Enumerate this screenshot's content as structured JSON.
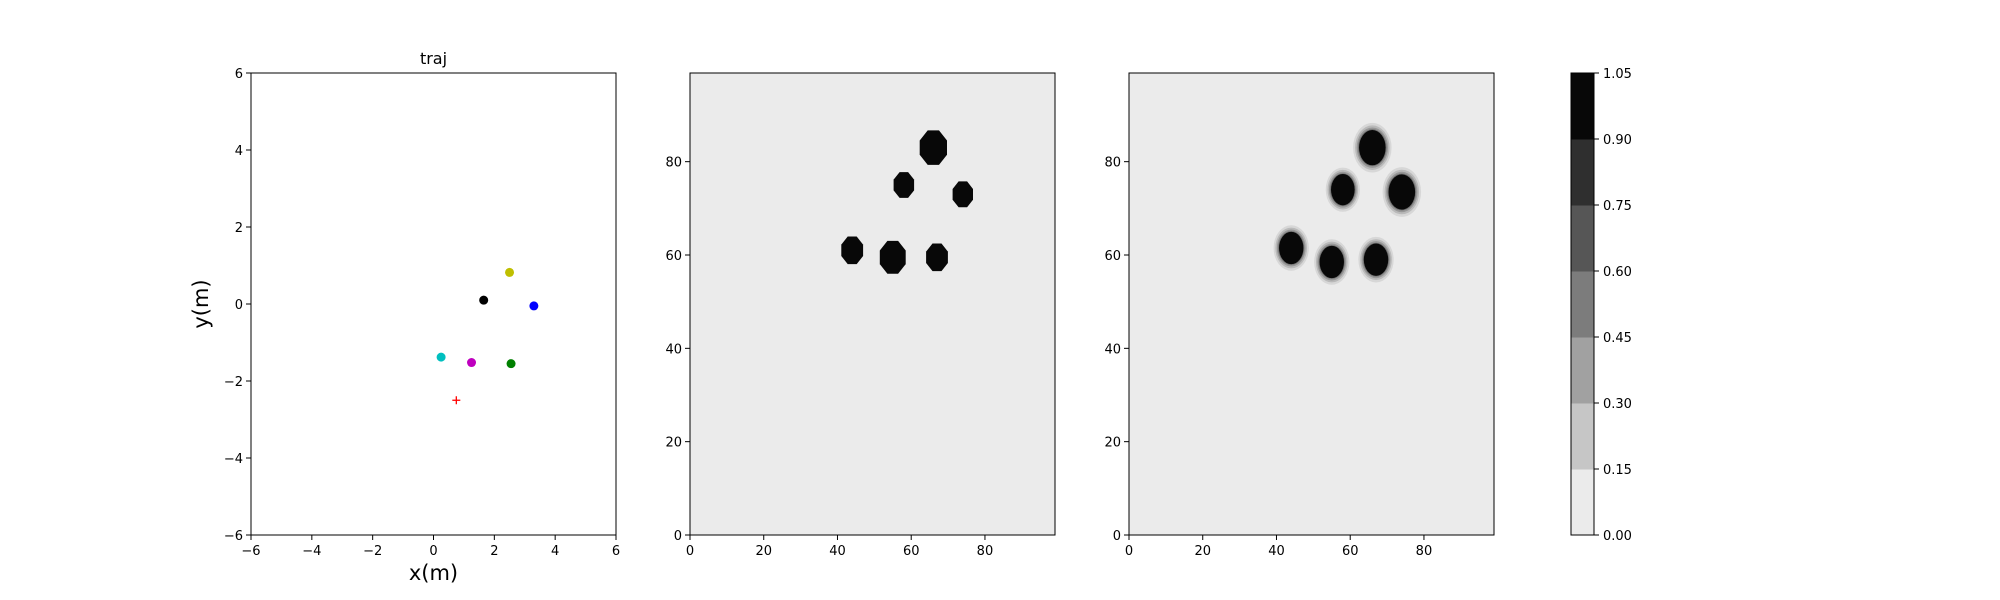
{
  "chart_data": [
    {
      "type": "scatter",
      "title": "traj",
      "xlabel": "x(m)",
      "ylabel": "y(m)",
      "xlim": [
        -6,
        6
      ],
      "ylim": [
        -6,
        6
      ],
      "xticks": [
        -6,
        -4,
        -2,
        0,
        2,
        4,
        6
      ],
      "yticks": [
        -6,
        -4,
        -2,
        0,
        2,
        4,
        6
      ],
      "grid": false,
      "points": [
        {
          "x": 2.5,
          "y": 0.82,
          "color": "#bfbf00",
          "marker": "circle"
        },
        {
          "x": 1.65,
          "y": 0.1,
          "color": "#000000",
          "marker": "circle"
        },
        {
          "x": 3.3,
          "y": -0.05,
          "color": "#0000ff",
          "marker": "circle"
        },
        {
          "x": 0.25,
          "y": -1.38,
          "color": "#00bfbf",
          "marker": "circle"
        },
        {
          "x": 1.25,
          "y": -1.52,
          "color": "#bf00bf",
          "marker": "circle"
        },
        {
          "x": 2.55,
          "y": -1.55,
          "color": "#008000",
          "marker": "circle"
        },
        {
          "x": 0.75,
          "y": -2.5,
          "color": "#ff0000",
          "marker": "plus"
        }
      ]
    },
    {
      "type": "heatmap",
      "xlim": [
        0,
        99
      ],
      "ylim": [
        0,
        99
      ],
      "xticks": [
        0,
        20,
        40,
        60,
        80
      ],
      "yticks": [
        0,
        20,
        40,
        60,
        80
      ],
      "background_value": 0.0,
      "blobs": [
        {
          "cx": 66,
          "cy": 83,
          "r": 4,
          "value": 1.05,
          "shape": "octagon"
        },
        {
          "cx": 58,
          "cy": 75,
          "r": 3,
          "value": 1.05,
          "shape": "octagon"
        },
        {
          "cx": 74,
          "cy": 73,
          "r": 3,
          "value": 1.05,
          "shape": "octagon"
        },
        {
          "cx": 44,
          "cy": 61,
          "r": 3.2,
          "value": 1.05,
          "shape": "octagon"
        },
        {
          "cx": 55,
          "cy": 59.5,
          "r": 3.8,
          "value": 1.05,
          "shape": "octagon"
        },
        {
          "cx": 67,
          "cy": 59.5,
          "r": 3.2,
          "value": 1.05,
          "shape": "octagon"
        }
      ]
    },
    {
      "type": "heatmap",
      "xlim": [
        0,
        99
      ],
      "ylim": [
        0,
        99
      ],
      "xticks": [
        0,
        20,
        40,
        60,
        80
      ],
      "yticks": [
        0,
        20,
        40,
        60,
        80
      ],
      "background_value": 0.0,
      "blobs": [
        {
          "cx": 66,
          "cy": 83,
          "r": 3.6,
          "value": 1.05,
          "shape": "soft"
        },
        {
          "cx": 58,
          "cy": 74,
          "r": 3.2,
          "value": 1.0,
          "shape": "soft"
        },
        {
          "cx": 74,
          "cy": 73.5,
          "r": 3.6,
          "value": 1.05,
          "shape": "soft"
        },
        {
          "cx": 44,
          "cy": 61.5,
          "r": 3.3,
          "value": 1.05,
          "shape": "soft"
        },
        {
          "cx": 55,
          "cy": 58.5,
          "r": 3.3,
          "value": 1.05,
          "shape": "soft"
        },
        {
          "cx": 67,
          "cy": 59,
          "r": 3.3,
          "value": 1.05,
          "shape": "soft"
        }
      ]
    }
  ],
  "colorbar": {
    "levels": [
      "0.00",
      "0.15",
      "0.30",
      "0.45",
      "0.60",
      "0.75",
      "0.90",
      "1.05"
    ],
    "band_colors": [
      "#ebebeb",
      "#c6c6c6",
      "#a1a1a1",
      "#7c7c7c",
      "#565656",
      "#2f2f2f",
      "#080808"
    ]
  }
}
